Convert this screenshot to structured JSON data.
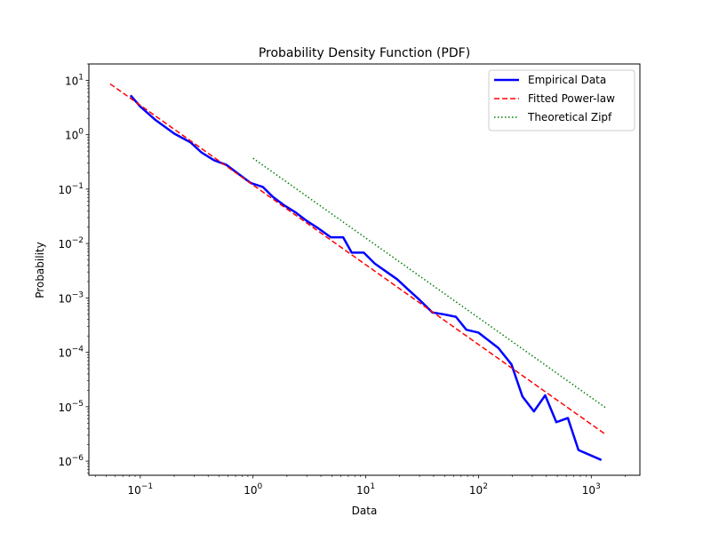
{
  "chart_data": {
    "type": "line",
    "title": "Probability Density Function (PDF)",
    "xlabel": "Data",
    "ylabel": "Probability",
    "xscale": "log",
    "yscale": "log",
    "xlim": [
      0.035,
      2700
    ],
    "ylim": [
      5.5e-07,
      20
    ],
    "grid": false,
    "legend_position": "top-right",
    "x_ticks": [
      {
        "value": 0.1,
        "base": "10",
        "exp": "−1"
      },
      {
        "value": 1,
        "base": "10",
        "exp": "0"
      },
      {
        "value": 10,
        "base": "10",
        "exp": "1"
      },
      {
        "value": 100,
        "base": "10",
        "exp": "2"
      },
      {
        "value": 1000,
        "base": "10",
        "exp": "3"
      }
    ],
    "y_ticks": [
      {
        "value": 1e-06,
        "base": "10",
        "exp": "−6"
      },
      {
        "value": 1e-05,
        "base": "10",
        "exp": "−5"
      },
      {
        "value": 0.0001,
        "base": "10",
        "exp": "−4"
      },
      {
        "value": 0.001,
        "base": "10",
        "exp": "−3"
      },
      {
        "value": 0.01,
        "base": "10",
        "exp": "−2"
      },
      {
        "value": 0.1,
        "base": "10",
        "exp": "−1"
      },
      {
        "value": 1,
        "base": "10",
        "exp": "0"
      },
      {
        "value": 10,
        "base": "10",
        "exp": "1"
      }
    ],
    "series": [
      {
        "name": "Empirical Data",
        "color": "#0000ff",
        "style": "solid",
        "x": [
          0.082,
          0.1,
          0.135,
          0.2,
          0.28,
          0.35,
          0.45,
          0.58,
          0.72,
          0.95,
          1.22,
          1.5,
          1.9,
          2.4,
          3.0,
          3.8,
          4.9,
          6.3,
          7.5,
          9.6,
          12,
          15,
          19,
          24,
          30,
          39,
          49,
          63,
          78,
          100,
          150,
          196,
          245,
          310,
          390,
          490,
          620,
          770,
          1230
        ],
        "y": [
          5.3,
          3.3,
          1.9,
          1.05,
          0.72,
          0.47,
          0.34,
          0.28,
          0.2,
          0.13,
          0.11,
          0.072,
          0.05,
          0.037,
          0.026,
          0.019,
          0.013,
          0.013,
          0.0068,
          0.0068,
          0.0043,
          0.0031,
          0.0022,
          0.0014,
          0.00092,
          0.00054,
          0.0005,
          0.00045,
          0.00026,
          0.00023,
          0.00012,
          6e-05,
          1.55e-05,
          8.2e-06,
          1.62e-05,
          5.2e-06,
          6.2e-06,
          1.6e-06,
          1.05e-06
        ]
      },
      {
        "name": "Fitted Power-law",
        "color": "#ff0000",
        "style": "dashed",
        "x": [
          0.054,
          1340
        ],
        "y": [
          8.6,
          3.1e-06
        ]
      },
      {
        "name": "Theoretical Zipf",
        "color": "#008000",
        "style": "dotted",
        "x": [
          1,
          1340
        ],
        "y": [
          0.37,
          9.6e-06
        ]
      }
    ]
  }
}
